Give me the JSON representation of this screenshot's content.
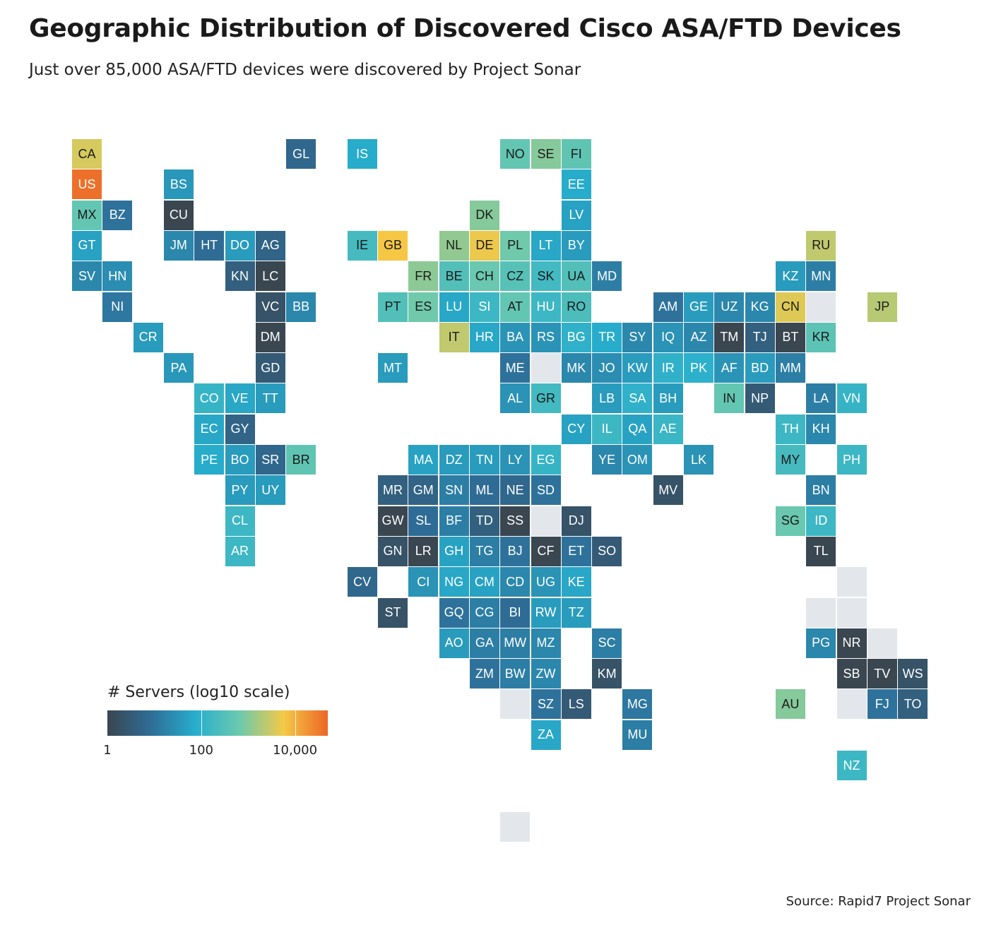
{
  "title": "Geographic Distribution of Discovered Cisco ASA/FTD Devices",
  "subtitle": "Just over 85,000 ASA/FTD devices were discovered by Project Sonar",
  "source": "Source: Rapid7 Project Sonar",
  "legend": {
    "title": "# Servers (log10 scale)",
    "scale": "log10",
    "range": [
      1,
      50000
    ],
    "colors": [
      "#3a4650",
      "#2e6e98",
      "#27aecd",
      "#6cc9ae",
      "#f5c946",
      "#eb6627"
    ],
    "ticks": [
      {
        "value": 1,
        "label": "1"
      },
      {
        "value": 100,
        "label": "100"
      },
      {
        "value": 10000,
        "label": "10,000"
      }
    ]
  },
  "chart_data": {
    "type": "heatmap",
    "variant": "tile-grid-map",
    "value_label": "# Servers",
    "tiles": [
      {
        "code": "CA",
        "col": 0,
        "row": 0,
        "v": 3500
      },
      {
        "code": "GL",
        "col": 7,
        "row": 0,
        "v": 6
      },
      {
        "code": "IS",
        "col": 9,
        "row": 0,
        "v": 70
      },
      {
        "code": "NO",
        "col": 14,
        "row": 0,
        "v": 500
      },
      {
        "code": "SE",
        "col": 15,
        "row": 0,
        "v": 1000
      },
      {
        "code": "FI",
        "col": 16,
        "row": 0,
        "v": 450
      },
      {
        "code": "US",
        "col": 0,
        "row": 1,
        "v": 40000
      },
      {
        "code": "BS",
        "col": 3,
        "row": 1,
        "v": 35
      },
      {
        "code": "EE",
        "col": 16,
        "row": 1,
        "v": 70
      },
      {
        "code": "MX",
        "col": 0,
        "row": 2,
        "v": 500
      },
      {
        "code": "BZ",
        "col": 1,
        "row": 2,
        "v": 10
      },
      {
        "code": "CU",
        "col": 3,
        "row": 2,
        "v": 1
      },
      {
        "code": "DK",
        "col": 13,
        "row": 2,
        "v": 1000
      },
      {
        "code": "LV",
        "col": 16,
        "row": 2,
        "v": 50
      },
      {
        "code": "GT",
        "col": 0,
        "row": 3,
        "v": 50
      },
      {
        "code": "JM",
        "col": 3,
        "row": 3,
        "v": 20
      },
      {
        "code": "HT",
        "col": 4,
        "row": 3,
        "v": 8
      },
      {
        "code": "DO",
        "col": 5,
        "row": 3,
        "v": 40
      },
      {
        "code": "AG",
        "col": 6,
        "row": 3,
        "v": 5
      },
      {
        "code": "IE",
        "col": 9,
        "row": 3,
        "v": 200
      },
      {
        "code": "GB",
        "col": 10,
        "row": 3,
        "v": 6000
      },
      {
        "code": "NL",
        "col": 12,
        "row": 3,
        "v": 1200
      },
      {
        "code": "DE",
        "col": 13,
        "row": 3,
        "v": 5000
      },
      {
        "code": "PL",
        "col": 14,
        "row": 3,
        "v": 700
      },
      {
        "code": "LT",
        "col": 15,
        "row": 3,
        "v": 60
      },
      {
        "code": "BY",
        "col": 16,
        "row": 3,
        "v": 40
      },
      {
        "code": "RU",
        "col": 24,
        "row": 3,
        "v": 2500
      },
      {
        "code": "SV",
        "col": 0,
        "row": 4,
        "v": 20
      },
      {
        "code": "HN",
        "col": 1,
        "row": 4,
        "v": 25
      },
      {
        "code": "KN",
        "col": 5,
        "row": 4,
        "v": 4
      },
      {
        "code": "LC",
        "col": 6,
        "row": 4,
        "v": 1
      },
      {
        "code": "FR",
        "col": 11,
        "row": 4,
        "v": 1100
      },
      {
        "code": "BE",
        "col": 12,
        "row": 4,
        "v": 300
      },
      {
        "code": "CH",
        "col": 13,
        "row": 4,
        "v": 600
      },
      {
        "code": "CZ",
        "col": 14,
        "row": 4,
        "v": 350
      },
      {
        "code": "SK",
        "col": 15,
        "row": 4,
        "v": 180
      },
      {
        "code": "UA",
        "col": 16,
        "row": 4,
        "v": 300
      },
      {
        "code": "MD",
        "col": 17,
        "row": 4,
        "v": 15
      },
      {
        "code": "KZ",
        "col": 23,
        "row": 4,
        "v": 40
      },
      {
        "code": "MN",
        "col": 24,
        "row": 4,
        "v": 15
      },
      {
        "code": "NI",
        "col": 1,
        "row": 5,
        "v": 12
      },
      {
        "code": "VC",
        "col": 6,
        "row": 5,
        "v": 2
      },
      {
        "code": "BB",
        "col": 7,
        "row": 5,
        "v": 20
      },
      {
        "code": "PT",
        "col": 10,
        "row": 5,
        "v": 300
      },
      {
        "code": "ES",
        "col": 11,
        "row": 5,
        "v": 700
      },
      {
        "code": "LU",
        "col": 12,
        "row": 5,
        "v": 60
      },
      {
        "code": "SI",
        "col": 13,
        "row": 5,
        "v": 150
      },
      {
        "code": "AT",
        "col": 14,
        "row": 5,
        "v": 500
      },
      {
        "code": "HU",
        "col": 15,
        "row": 5,
        "v": 150
      },
      {
        "code": "RO",
        "col": 16,
        "row": 5,
        "v": 250
      },
      {
        "code": "AM",
        "col": 19,
        "row": 5,
        "v": 10
      },
      {
        "code": "GE",
        "col": 20,
        "row": 5,
        "v": 40
      },
      {
        "code": "UZ",
        "col": 21,
        "row": 5,
        "v": 20
      },
      {
        "code": "KG",
        "col": 22,
        "row": 5,
        "v": 20
      },
      {
        "code": "CN",
        "col": 23,
        "row": 5,
        "v": 4000
      },
      {
        "code": "",
        "col": 24,
        "row": 5,
        "v": null
      },
      {
        "code": "JP",
        "col": 26,
        "row": 5,
        "v": 2200
      },
      {
        "code": "CR",
        "col": 2,
        "row": 6,
        "v": 40
      },
      {
        "code": "DM",
        "col": 6,
        "row": 6,
        "v": 1
      },
      {
        "code": "IT",
        "col": 12,
        "row": 6,
        "v": 2500
      },
      {
        "code": "HR",
        "col": 13,
        "row": 6,
        "v": 60
      },
      {
        "code": "BA",
        "col": 14,
        "row": 6,
        "v": 30
      },
      {
        "code": "RS",
        "col": 15,
        "row": 6,
        "v": 30
      },
      {
        "code": "BG",
        "col": 16,
        "row": 6,
        "v": 100
      },
      {
        "code": "TR",
        "col": 17,
        "row": 6,
        "v": 70
      },
      {
        "code": "SY",
        "col": 18,
        "row": 6,
        "v": 20
      },
      {
        "code": "IQ",
        "col": 19,
        "row": 6,
        "v": 30
      },
      {
        "code": "AZ",
        "col": 20,
        "row": 6,
        "v": 20
      },
      {
        "code": "TM",
        "col": 21,
        "row": 6,
        "v": 1
      },
      {
        "code": "TJ",
        "col": 22,
        "row": 6,
        "v": 4
      },
      {
        "code": "BT",
        "col": 23,
        "row": 6,
        "v": 1
      },
      {
        "code": "KR",
        "col": 24,
        "row": 6,
        "v": 400
      },
      {
        "code": "PA",
        "col": 3,
        "row": 7,
        "v": 35
      },
      {
        "code": "GD",
        "col": 6,
        "row": 7,
        "v": 3
      },
      {
        "code": "MT",
        "col": 10,
        "row": 7,
        "v": 40
      },
      {
        "code": "ME",
        "col": 14,
        "row": 7,
        "v": 10
      },
      {
        "code": "",
        "col": 15,
        "row": 7,
        "v": null
      },
      {
        "code": "MK",
        "col": 16,
        "row": 7,
        "v": 20
      },
      {
        "code": "JO",
        "col": 17,
        "row": 7,
        "v": 25
      },
      {
        "code": "KW",
        "col": 18,
        "row": 7,
        "v": 40
      },
      {
        "code": "IR",
        "col": 19,
        "row": 7,
        "v": 100
      },
      {
        "code": "PK",
        "col": 20,
        "row": 7,
        "v": 90
      },
      {
        "code": "AF",
        "col": 21,
        "row": 7,
        "v": 30
      },
      {
        "code": "BD",
        "col": 22,
        "row": 7,
        "v": 40
      },
      {
        "code": "MM",
        "col": 23,
        "row": 7,
        "v": 15
      },
      {
        "code": "CO",
        "col": 4,
        "row": 8,
        "v": 120
      },
      {
        "code": "VE",
        "col": 5,
        "row": 8,
        "v": 60
      },
      {
        "code": "TT",
        "col": 6,
        "row": 8,
        "v": 40
      },
      {
        "code": "AL",
        "col": 14,
        "row": 8,
        "v": 30
      },
      {
        "code": "GR",
        "col": 15,
        "row": 8,
        "v": 180
      },
      {
        "code": "LB",
        "col": 17,
        "row": 8,
        "v": 40
      },
      {
        "code": "SA",
        "col": 18,
        "row": 8,
        "v": 100
      },
      {
        "code": "BH",
        "col": 19,
        "row": 8,
        "v": 40
      },
      {
        "code": "IN",
        "col": 21,
        "row": 8,
        "v": 500
      },
      {
        "code": "NP",
        "col": 22,
        "row": 8,
        "v": 3
      },
      {
        "code": "LA",
        "col": 24,
        "row": 8,
        "v": 15
      },
      {
        "code": "VN",
        "col": 25,
        "row": 8,
        "v": 120
      },
      {
        "code": "EC",
        "col": 4,
        "row": 9,
        "v": 60
      },
      {
        "code": "GY",
        "col": 5,
        "row": 9,
        "v": 5
      },
      {
        "code": "CY",
        "col": 16,
        "row": 9,
        "v": 50
      },
      {
        "code": "IL",
        "col": 17,
        "row": 9,
        "v": 150
      },
      {
        "code": "QA",
        "col": 18,
        "row": 9,
        "v": 50
      },
      {
        "code": "AE",
        "col": 19,
        "row": 9,
        "v": 140
      },
      {
        "code": "TH",
        "col": 23,
        "row": 9,
        "v": 150
      },
      {
        "code": "KH",
        "col": 24,
        "row": 9,
        "v": 20
      },
      {
        "code": "PE",
        "col": 4,
        "row": 10,
        "v": 70
      },
      {
        "code": "BO",
        "col": 5,
        "row": 10,
        "v": 40
      },
      {
        "code": "SR",
        "col": 6,
        "row": 10,
        "v": 6
      },
      {
        "code": "BR",
        "col": 7,
        "row": 10,
        "v": 450
      },
      {
        "code": "MA",
        "col": 11,
        "row": 10,
        "v": 50
      },
      {
        "code": "DZ",
        "col": 12,
        "row": 10,
        "v": 40
      },
      {
        "code": "TN",
        "col": 13,
        "row": 10,
        "v": 40
      },
      {
        "code": "LY",
        "col": 14,
        "row": 10,
        "v": 30
      },
      {
        "code": "EG",
        "col": 15,
        "row": 10,
        "v": 120
      },
      {
        "code": "YE",
        "col": 17,
        "row": 10,
        "v": 20
      },
      {
        "code": "OM",
        "col": 18,
        "row": 10,
        "v": 30
      },
      {
        "code": "LK",
        "col": 20,
        "row": 10,
        "v": 30
      },
      {
        "code": "MY",
        "col": 23,
        "row": 10,
        "v": 200
      },
      {
        "code": "PH",
        "col": 25,
        "row": 10,
        "v": 150
      },
      {
        "code": "PY",
        "col": 5,
        "row": 11,
        "v": 40
      },
      {
        "code": "UY",
        "col": 6,
        "row": 11,
        "v": 40
      },
      {
        "code": "MR",
        "col": 10,
        "row": 11,
        "v": 4
      },
      {
        "code": "GM",
        "col": 11,
        "row": 11,
        "v": 5
      },
      {
        "code": "SN",
        "col": 12,
        "row": 11,
        "v": 15
      },
      {
        "code": "ML",
        "col": 13,
        "row": 11,
        "v": 8
      },
      {
        "code": "NE",
        "col": 14,
        "row": 11,
        "v": 6
      },
      {
        "code": "SD",
        "col": 15,
        "row": 11,
        "v": 10
      },
      {
        "code": "MV",
        "col": 19,
        "row": 11,
        "v": 2
      },
      {
        "code": "BN",
        "col": 24,
        "row": 11,
        "v": 15
      },
      {
        "code": "CL",
        "col": 5,
        "row": 12,
        "v": 150
      },
      {
        "code": "GW",
        "col": 10,
        "row": 12,
        "v": 1
      },
      {
        "code": "SL",
        "col": 11,
        "row": 12,
        "v": 8
      },
      {
        "code": "BF",
        "col": 12,
        "row": 12,
        "v": 15
      },
      {
        "code": "TD",
        "col": 13,
        "row": 12,
        "v": 4
      },
      {
        "code": "SS",
        "col": 14,
        "row": 12,
        "v": 1
      },
      {
        "code": "",
        "col": 15,
        "row": 12,
        "v": null
      },
      {
        "code": "DJ",
        "col": 16,
        "row": 12,
        "v": 2
      },
      {
        "code": "SG",
        "col": 23,
        "row": 12,
        "v": 600
      },
      {
        "code": "ID",
        "col": 24,
        "row": 12,
        "v": 150
      },
      {
        "code": "AR",
        "col": 5,
        "row": 13,
        "v": 150
      },
      {
        "code": "GN",
        "col": 10,
        "row": 13,
        "v": 2
      },
      {
        "code": "LR",
        "col": 11,
        "row": 13,
        "v": 1
      },
      {
        "code": "GH",
        "col": 12,
        "row": 13,
        "v": 50
      },
      {
        "code": "TG",
        "col": 13,
        "row": 13,
        "v": 15
      },
      {
        "code": "BJ",
        "col": 14,
        "row": 13,
        "v": 10
      },
      {
        "code": "CF",
        "col": 15,
        "row": 13,
        "v": 1
      },
      {
        "code": "ET",
        "col": 16,
        "row": 13,
        "v": 10
      },
      {
        "code": "SO",
        "col": 17,
        "row": 13,
        "v": 3
      },
      {
        "code": "TL",
        "col": 24,
        "row": 13,
        "v": 1
      },
      {
        "code": "CV",
        "col": 9,
        "row": 14,
        "v": 6
      },
      {
        "code": "CI",
        "col": 11,
        "row": 14,
        "v": 30
      },
      {
        "code": "NG",
        "col": 12,
        "row": 14,
        "v": 60
      },
      {
        "code": "CM",
        "col": 13,
        "row": 14,
        "v": 50
      },
      {
        "code": "CD",
        "col": 14,
        "row": 14,
        "v": 20
      },
      {
        "code": "UG",
        "col": 15,
        "row": 14,
        "v": 30
      },
      {
        "code": "KE",
        "col": 16,
        "row": 14,
        "v": 60
      },
      {
        "code": "",
        "col": 25,
        "row": 14,
        "v": null
      },
      {
        "code": "ST",
        "col": 10,
        "row": 15,
        "v": 2
      },
      {
        "code": "GQ",
        "col": 12,
        "row": 15,
        "v": 10
      },
      {
        "code": "CG",
        "col": 13,
        "row": 15,
        "v": 15
      },
      {
        "code": "BI",
        "col": 14,
        "row": 15,
        "v": 8
      },
      {
        "code": "RW",
        "col": 15,
        "row": 15,
        "v": 40
      },
      {
        "code": "TZ",
        "col": 16,
        "row": 15,
        "v": 40
      },
      {
        "code": "",
        "col": 24,
        "row": 15,
        "v": null
      },
      {
        "code": "",
        "col": 25,
        "row": 15,
        "v": null
      },
      {
        "code": "AO",
        "col": 12,
        "row": 16,
        "v": 40
      },
      {
        "code": "GA",
        "col": 13,
        "row": 16,
        "v": 15
      },
      {
        "code": "MW",
        "col": 14,
        "row": 16,
        "v": 15
      },
      {
        "code": "MZ",
        "col": 15,
        "row": 16,
        "v": 20
      },
      {
        "code": "SC",
        "col": 17,
        "row": 16,
        "v": 15
      },
      {
        "code": "PG",
        "col": 24,
        "row": 16,
        "v": 20
      },
      {
        "code": "NR",
        "col": 25,
        "row": 16,
        "v": 1
      },
      {
        "code": "",
        "col": 26,
        "row": 16,
        "v": null
      },
      {
        "code": "ZM",
        "col": 13,
        "row": 17,
        "v": 10
      },
      {
        "code": "BW",
        "col": 14,
        "row": 17,
        "v": 15
      },
      {
        "code": "ZW",
        "col": 15,
        "row": 17,
        "v": 20
      },
      {
        "code": "KM",
        "col": 17,
        "row": 17,
        "v": 2
      },
      {
        "code": "SB",
        "col": 25,
        "row": 17,
        "v": 1
      },
      {
        "code": "TV",
        "col": 26,
        "row": 17,
        "v": 1
      },
      {
        "code": "WS",
        "col": 27,
        "row": 17,
        "v": 2
      },
      {
        "code": "",
        "col": 14,
        "row": 18,
        "v": null
      },
      {
        "code": "SZ",
        "col": 15,
        "row": 18,
        "v": 10
      },
      {
        "code": "LS",
        "col": 16,
        "row": 18,
        "v": 3
      },
      {
        "code": "MG",
        "col": 18,
        "row": 18,
        "v": 12
      },
      {
        "code": "AU",
        "col": 23,
        "row": 18,
        "v": 1000
      },
      {
        "code": "",
        "col": 25,
        "row": 18,
        "v": null
      },
      {
        "code": "FJ",
        "col": 26,
        "row": 18,
        "v": 10
      },
      {
        "code": "TO",
        "col": 27,
        "row": 18,
        "v": 4
      },
      {
        "code": "ZA",
        "col": 15,
        "row": 19,
        "v": 60
      },
      {
        "code": "MU",
        "col": 18,
        "row": 19,
        "v": 15
      },
      {
        "code": "NZ",
        "col": 25,
        "row": 20,
        "v": 150
      },
      {
        "code": "",
        "col": 14,
        "row": 22,
        "v": null
      }
    ]
  }
}
